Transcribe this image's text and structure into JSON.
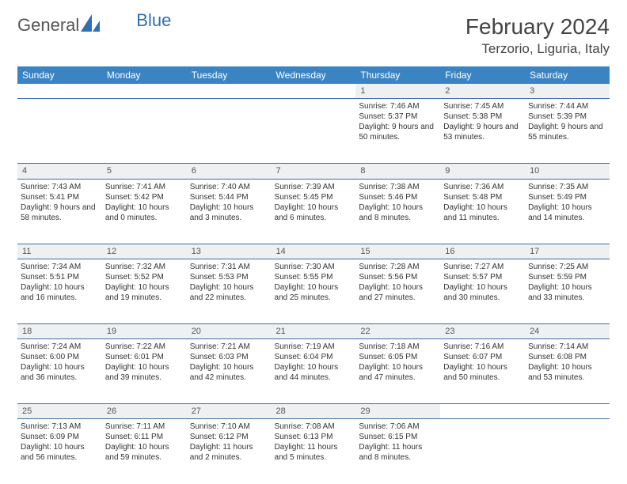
{
  "logo": {
    "text1": "General",
    "text2": "Blue"
  },
  "title": "February 2024",
  "location": "Terzorio, Liguria, Italy",
  "colors": {
    "header_bg": "#3b84c4",
    "header_text": "#ffffff",
    "daynum_bg": "#eef0f1",
    "border": "#3b6fa0",
    "logo_blue": "#2f6fb3"
  },
  "weekdays": [
    "Sunday",
    "Monday",
    "Tuesday",
    "Wednesday",
    "Thursday",
    "Friday",
    "Saturday"
  ],
  "weeks": [
    {
      "nums": [
        "",
        "",
        "",
        "",
        "1",
        "2",
        "3"
      ],
      "cells": [
        null,
        null,
        null,
        null,
        {
          "sunrise": "Sunrise: 7:46 AM",
          "sunset": "Sunset: 5:37 PM",
          "daylight": "Daylight: 9 hours and 50 minutes."
        },
        {
          "sunrise": "Sunrise: 7:45 AM",
          "sunset": "Sunset: 5:38 PM",
          "daylight": "Daylight: 9 hours and 53 minutes."
        },
        {
          "sunrise": "Sunrise: 7:44 AM",
          "sunset": "Sunset: 5:39 PM",
          "daylight": "Daylight: 9 hours and 55 minutes."
        }
      ]
    },
    {
      "nums": [
        "4",
        "5",
        "6",
        "7",
        "8",
        "9",
        "10"
      ],
      "cells": [
        {
          "sunrise": "Sunrise: 7:43 AM",
          "sunset": "Sunset: 5:41 PM",
          "daylight": "Daylight: 9 hours and 58 minutes."
        },
        {
          "sunrise": "Sunrise: 7:41 AM",
          "sunset": "Sunset: 5:42 PM",
          "daylight": "Daylight: 10 hours and 0 minutes."
        },
        {
          "sunrise": "Sunrise: 7:40 AM",
          "sunset": "Sunset: 5:44 PM",
          "daylight": "Daylight: 10 hours and 3 minutes."
        },
        {
          "sunrise": "Sunrise: 7:39 AM",
          "sunset": "Sunset: 5:45 PM",
          "daylight": "Daylight: 10 hours and 6 minutes."
        },
        {
          "sunrise": "Sunrise: 7:38 AM",
          "sunset": "Sunset: 5:46 PM",
          "daylight": "Daylight: 10 hours and 8 minutes."
        },
        {
          "sunrise": "Sunrise: 7:36 AM",
          "sunset": "Sunset: 5:48 PM",
          "daylight": "Daylight: 10 hours and 11 minutes."
        },
        {
          "sunrise": "Sunrise: 7:35 AM",
          "sunset": "Sunset: 5:49 PM",
          "daylight": "Daylight: 10 hours and 14 minutes."
        }
      ]
    },
    {
      "nums": [
        "11",
        "12",
        "13",
        "14",
        "15",
        "16",
        "17"
      ],
      "cells": [
        {
          "sunrise": "Sunrise: 7:34 AM",
          "sunset": "Sunset: 5:51 PM",
          "daylight": "Daylight: 10 hours and 16 minutes."
        },
        {
          "sunrise": "Sunrise: 7:32 AM",
          "sunset": "Sunset: 5:52 PM",
          "daylight": "Daylight: 10 hours and 19 minutes."
        },
        {
          "sunrise": "Sunrise: 7:31 AM",
          "sunset": "Sunset: 5:53 PM",
          "daylight": "Daylight: 10 hours and 22 minutes."
        },
        {
          "sunrise": "Sunrise: 7:30 AM",
          "sunset": "Sunset: 5:55 PM",
          "daylight": "Daylight: 10 hours and 25 minutes."
        },
        {
          "sunrise": "Sunrise: 7:28 AM",
          "sunset": "Sunset: 5:56 PM",
          "daylight": "Daylight: 10 hours and 27 minutes."
        },
        {
          "sunrise": "Sunrise: 7:27 AM",
          "sunset": "Sunset: 5:57 PM",
          "daylight": "Daylight: 10 hours and 30 minutes."
        },
        {
          "sunrise": "Sunrise: 7:25 AM",
          "sunset": "Sunset: 5:59 PM",
          "daylight": "Daylight: 10 hours and 33 minutes."
        }
      ]
    },
    {
      "nums": [
        "18",
        "19",
        "20",
        "21",
        "22",
        "23",
        "24"
      ],
      "cells": [
        {
          "sunrise": "Sunrise: 7:24 AM",
          "sunset": "Sunset: 6:00 PM",
          "daylight": "Daylight: 10 hours and 36 minutes."
        },
        {
          "sunrise": "Sunrise: 7:22 AM",
          "sunset": "Sunset: 6:01 PM",
          "daylight": "Daylight: 10 hours and 39 minutes."
        },
        {
          "sunrise": "Sunrise: 7:21 AM",
          "sunset": "Sunset: 6:03 PM",
          "daylight": "Daylight: 10 hours and 42 minutes."
        },
        {
          "sunrise": "Sunrise: 7:19 AM",
          "sunset": "Sunset: 6:04 PM",
          "daylight": "Daylight: 10 hours and 44 minutes."
        },
        {
          "sunrise": "Sunrise: 7:18 AM",
          "sunset": "Sunset: 6:05 PM",
          "daylight": "Daylight: 10 hours and 47 minutes."
        },
        {
          "sunrise": "Sunrise: 7:16 AM",
          "sunset": "Sunset: 6:07 PM",
          "daylight": "Daylight: 10 hours and 50 minutes."
        },
        {
          "sunrise": "Sunrise: 7:14 AM",
          "sunset": "Sunset: 6:08 PM",
          "daylight": "Daylight: 10 hours and 53 minutes."
        }
      ]
    },
    {
      "nums": [
        "25",
        "26",
        "27",
        "28",
        "29",
        "",
        ""
      ],
      "cells": [
        {
          "sunrise": "Sunrise: 7:13 AM",
          "sunset": "Sunset: 6:09 PM",
          "daylight": "Daylight: 10 hours and 56 minutes."
        },
        {
          "sunrise": "Sunrise: 7:11 AM",
          "sunset": "Sunset: 6:11 PM",
          "daylight": "Daylight: 10 hours and 59 minutes."
        },
        {
          "sunrise": "Sunrise: 7:10 AM",
          "sunset": "Sunset: 6:12 PM",
          "daylight": "Daylight: 11 hours and 2 minutes."
        },
        {
          "sunrise": "Sunrise: 7:08 AM",
          "sunset": "Sunset: 6:13 PM",
          "daylight": "Daylight: 11 hours and 5 minutes."
        },
        {
          "sunrise": "Sunrise: 7:06 AM",
          "sunset": "Sunset: 6:15 PM",
          "daylight": "Daylight: 11 hours and 8 minutes."
        },
        null,
        null
      ]
    }
  ]
}
